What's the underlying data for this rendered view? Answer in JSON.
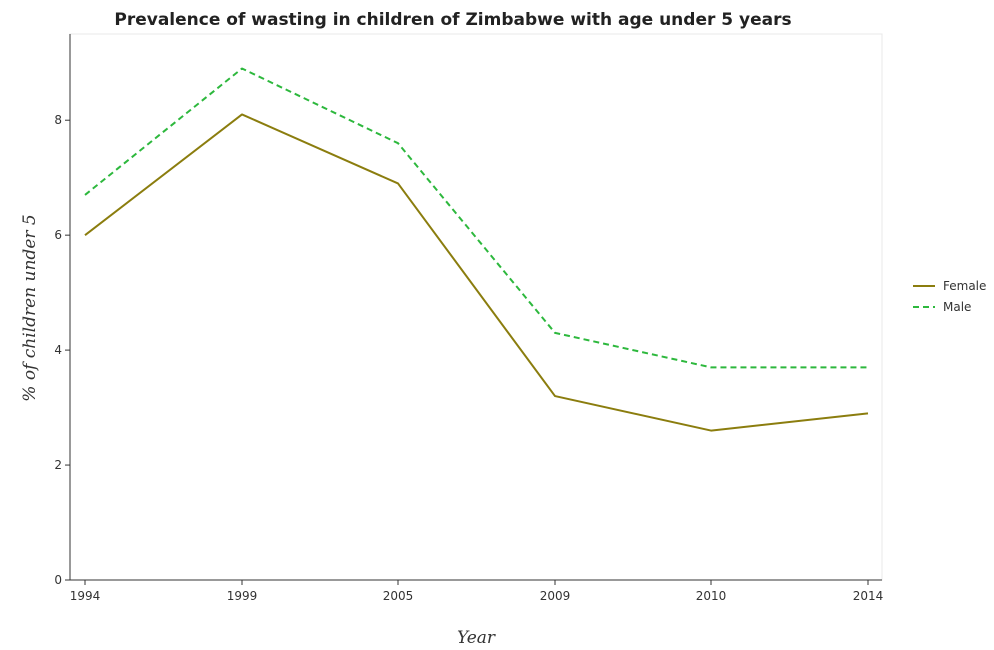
{
  "chart_data": {
    "type": "line",
    "title": "Prevalence of wasting in children of Zimbabwe with age under 5 years",
    "xlabel": "Year",
    "ylabel": "% of children under 5",
    "categories": [
      "1994",
      "1999",
      "2005",
      "2009",
      "2010",
      "2014"
    ],
    "yticks": [
      "0",
      "2",
      "4",
      "6",
      "8"
    ],
    "ylim": [
      0,
      9.5
    ],
    "legend_position": "right",
    "series": [
      {
        "name": "Female",
        "values": [
          6.0,
          8.1,
          6.9,
          3.2,
          2.6,
          2.9
        ],
        "color": "#8b7d0e",
        "style": "solid"
      },
      {
        "name": "Male",
        "values": [
          6.7,
          8.9,
          7.6,
          4.3,
          3.7,
          3.7
        ],
        "color": "#2db83d",
        "style": "dashed"
      }
    ]
  }
}
